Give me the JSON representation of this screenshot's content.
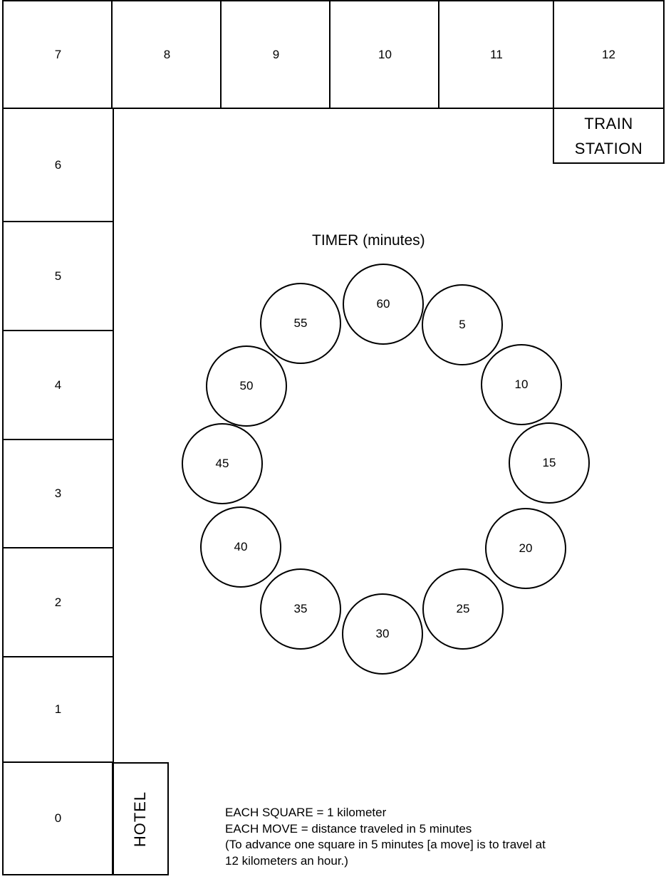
{
  "board": {
    "squares": [
      "0",
      "1",
      "2",
      "3",
      "4",
      "5",
      "6",
      "7",
      "8",
      "9",
      "10",
      "11",
      "12"
    ],
    "train_station": [
      "TRAIN",
      "STATION"
    ],
    "hotel": "HOTEL"
  },
  "timer": {
    "title": "TIMER (minutes)",
    "circles": [
      "60",
      "5",
      "10",
      "15",
      "20",
      "25",
      "30",
      "35",
      "40",
      "45",
      "50",
      "55"
    ]
  },
  "notes": [
    "EACH SQUARE = 1 kilometer",
    "EACH MOVE = distance traveled in 5 minutes",
    "(To advance one square in 5 minutes [a move] is to travel at",
    "12 kilometers an hour.)"
  ]
}
